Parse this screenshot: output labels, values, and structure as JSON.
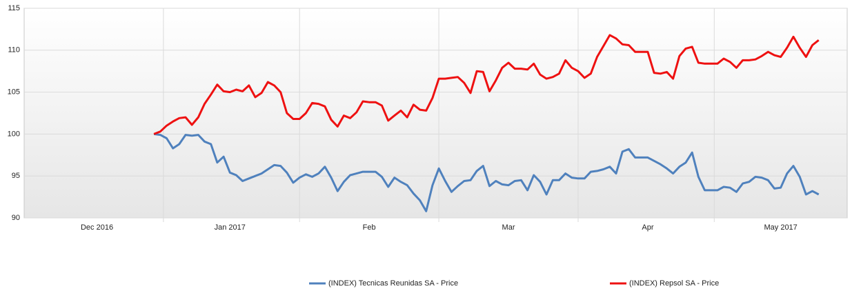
{
  "chart_data": {
    "type": "line",
    "categories": [
      null,
      null,
      null,
      null,
      null,
      null,
      null,
      null,
      null,
      null,
      null,
      "Dec 2016",
      null,
      null,
      null,
      null,
      null,
      null,
      null,
      null,
      null,
      null,
      null,
      null,
      null,
      null,
      null,
      null,
      null,
      null,
      null,
      null,
      "Jan 2017",
      null,
      null,
      null,
      null,
      null,
      null,
      null,
      null,
      null,
      null,
      null,
      null,
      null,
      null,
      null,
      null,
      null,
      null,
      null,
      null,
      null,
      "Feb",
      null,
      null,
      null,
      null,
      null,
      null,
      null,
      null,
      null,
      null,
      null,
      null,
      null,
      null,
      null,
      null,
      null,
      null,
      null,
      null,
      null,
      "Mar",
      null,
      null,
      null,
      null,
      null,
      null,
      null,
      null,
      null,
      null,
      null,
      null,
      null,
      null,
      null,
      null,
      null,
      null,
      null,
      null,
      null,
      "Apr",
      null,
      null,
      null,
      null,
      null,
      null,
      null,
      null,
      null,
      null,
      null,
      null,
      null,
      null,
      null,
      null,
      null,
      null,
      null,
      null,
      "May 2017",
      null,
      null,
      null,
      null,
      null,
      null,
      null,
      null,
      null,
      null
    ],
    "series": [
      {
        "name": "(INDEX) Tecnicas Reunidas SA - Price",
        "color": "#4f81bd",
        "values": [
          null,
          null,
          null,
          null,
          null,
          null,
          null,
          null,
          null,
          null,
          null,
          null,
          null,
          null,
          null,
          null,
          null,
          null,
          null,
          null,
          100,
          99.9,
          99.5,
          98.3,
          98.8,
          99.9,
          99.8,
          99.9,
          99.1,
          98.8,
          96.6,
          97.3,
          95.4,
          95.1,
          94.4,
          94.7,
          95,
          95.3,
          95.8,
          96.3,
          96.2,
          95.4,
          94.2,
          94.8,
          95.2,
          94.9,
          95.3,
          96.1,
          94.8,
          93.2,
          94.3,
          95.1,
          95.3,
          95.5,
          95.5,
          95.5,
          94.9,
          93.7,
          94.8,
          94.3,
          93.9,
          92.9,
          92.1,
          90.8,
          93.9,
          95.9,
          94.4,
          93.1,
          93.8,
          94.4,
          94.5,
          95.6,
          96.2,
          93.8,
          94.4,
          94,
          93.9,
          94.4,
          94.5,
          93.3,
          95.1,
          94.3,
          92.8,
          94.5,
          94.5,
          95.3,
          94.8,
          94.7,
          94.7,
          95.5,
          95.6,
          95.8,
          96.1,
          95.3,
          97.9,
          98.2,
          97.2,
          97.2,
          97.2,
          96.8,
          96.4,
          95.9,
          95.3,
          96.1,
          96.6,
          97.8,
          94.9,
          93.3,
          93.3,
          93.3,
          93.7,
          93.6,
          93.1,
          94.1,
          94.3,
          94.9,
          94.8,
          94.5,
          93.5,
          93.6,
          95.3,
          96.2,
          94.9,
          92.8,
          93.2,
          92.8,
          null,
          null,
          null,
          null
        ]
      },
      {
        "name": "(INDEX) Repsol SA - Price",
        "color": "#ee1111",
        "values": [
          null,
          null,
          null,
          null,
          null,
          null,
          null,
          null,
          null,
          null,
          null,
          null,
          null,
          null,
          null,
          null,
          null,
          null,
          null,
          null,
          100,
          100.3,
          101,
          101.5,
          101.9,
          102,
          101.1,
          102,
          103.6,
          104.7,
          105.9,
          105.1,
          105,
          105.3,
          105.1,
          105.8,
          104.4,
          104.9,
          106.2,
          105.8,
          105,
          102.5,
          101.8,
          101.8,
          102.5,
          103.7,
          103.6,
          103.3,
          101.7,
          100.9,
          102.2,
          101.9,
          102.6,
          103.9,
          103.8,
          103.8,
          103.4,
          101.6,
          102.2,
          102.8,
          102,
          103.5,
          102.9,
          102.8,
          104.3,
          106.6,
          106.6,
          106.7,
          106.8,
          106.1,
          104.9,
          107.5,
          107.4,
          105.1,
          106.4,
          107.9,
          108.5,
          107.8,
          107.8,
          107.7,
          108.4,
          107.1,
          106.6,
          106.8,
          107.2,
          108.8,
          107.9,
          107.5,
          106.7,
          107.2,
          109.2,
          110.5,
          111.8,
          111.4,
          110.7,
          110.6,
          109.8,
          109.8,
          109.8,
          107.3,
          107.2,
          107.4,
          106.6,
          109.3,
          110.2,
          110.4,
          108.5,
          108.4,
          108.4,
          108.4,
          109,
          108.6,
          107.9,
          108.8,
          108.8,
          108.9,
          109.3,
          109.8,
          109.4,
          109.2,
          110.3,
          111.6,
          110.3,
          109.2,
          110.6,
          111.2,
          null,
          null,
          null,
          null
        ]
      }
    ],
    "ylim": [
      90,
      115
    ],
    "yticks": [
      90,
      95,
      100,
      105,
      110,
      115
    ],
    "grid": true,
    "legend": "bottom"
  }
}
